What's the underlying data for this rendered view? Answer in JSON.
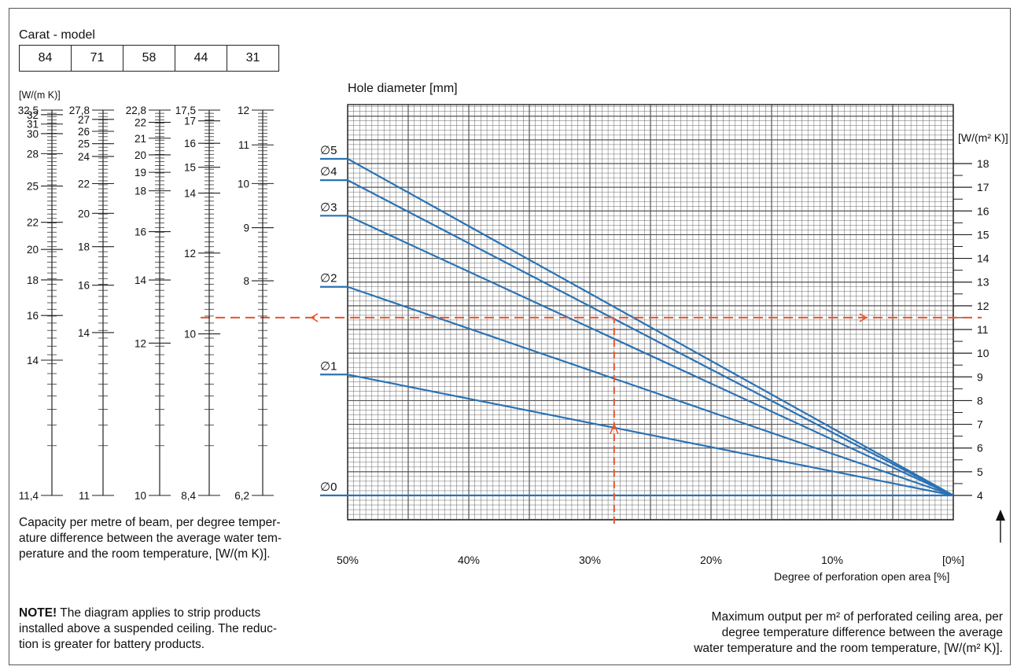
{
  "model_box": {
    "title": "Carat - model",
    "models": [
      "84",
      "71",
      "58",
      "44",
      "31"
    ]
  },
  "left_panel": {
    "unit": "[W/(m K)]",
    "caption": [
      "Capacity per metre of beam, per degree temper-",
      "ature difference between the average water tem-",
      "perature and the room temperature, [W/(m K)]."
    ]
  },
  "note": {
    "label": "NOTE!",
    "lines": [
      " The diagram applies to strip products",
      "installed above a suspended ceiling. The reduc-",
      "tion is greater for battery products."
    ]
  },
  "right_caption": [
    "Maximum output per m² of perforated ceiling area, per",
    "degree temperature difference between the average",
    "water temperature and the room temperature, [W/(m² K)]."
  ],
  "colors": {
    "curve": "#2a72b5",
    "guide": "#e8542a",
    "grid": "#333333"
  },
  "chart_data": [
    {
      "type": "line",
      "title": "Hole diameter [mm]",
      "xlabel": "Degree of perforation open area [%]",
      "ylabel": "[W/(m² K)]",
      "x_ticks": [
        "50%",
        "40%",
        "30%",
        "20%",
        "10%",
        "[0%]"
      ],
      "xlim": [
        50,
        0
      ],
      "y_ticks": [
        4,
        5,
        6,
        7,
        8,
        9,
        10,
        11,
        12,
        13,
        14,
        15,
        16,
        17,
        18
      ],
      "ylim": [
        3,
        19
      ],
      "series": [
        {
          "name": "∅5",
          "points": [
            [
              50,
              18.2
            ],
            [
              0,
              4
            ]
          ]
        },
        {
          "name": "∅4",
          "points": [
            [
              50,
              17.3
            ],
            [
              0,
              4
            ]
          ]
        },
        {
          "name": "∅3",
          "points": [
            [
              50,
              15.8
            ],
            [
              0,
              4
            ]
          ]
        },
        {
          "name": "∅2",
          "points": [
            [
              50,
              12.8
            ],
            [
              0,
              4
            ]
          ]
        },
        {
          "name": "∅1",
          "points": [
            [
              50,
              9.1
            ],
            [
              0,
              4
            ]
          ]
        },
        {
          "name": "∅0",
          "points": [
            [
              50,
              4
            ],
            [
              0,
              4
            ]
          ]
        }
      ],
      "example_reading": {
        "x": 28,
        "y": 11.5
      }
    },
    {
      "type": "scale",
      "scales": [
        {
          "labels": [
            [
              "32,5",
              32.5
            ],
            [
              "32",
              32
            ],
            [
              "31",
              31
            ],
            [
              "30",
              30
            ],
            [
              "28",
              28
            ],
            [
              "25",
              25
            ],
            [
              "22",
              22
            ],
            [
              "20",
              20
            ],
            [
              "18",
              18
            ],
            [
              "16",
              16
            ],
            [
              "14",
              14
            ],
            [
              "11,4",
              11.4
            ]
          ]
        },
        {
          "labels": [
            [
              "27,8",
              27.8
            ],
            [
              "27",
              27
            ],
            [
              "26",
              26
            ],
            [
              "25",
              25
            ],
            [
              "24",
              24
            ],
            [
              "22",
              22
            ],
            [
              "20",
              20
            ],
            [
              "18",
              18
            ],
            [
              "16",
              16
            ],
            [
              "14",
              14
            ],
            [
              "11",
              11
            ]
          ]
        },
        {
          "labels": [
            [
              "22,8",
              22.8
            ],
            [
              "22",
              22
            ],
            [
              "21",
              21
            ],
            [
              "20",
              20
            ],
            [
              "19",
              19
            ],
            [
              "18",
              18
            ],
            [
              "16",
              16
            ],
            [
              "14",
              14
            ],
            [
              "12",
              12
            ],
            [
              "10",
              10
            ]
          ]
        },
        {
          "labels": [
            [
              "17,5",
              17.5
            ],
            [
              "17",
              17
            ],
            [
              "16",
              16
            ],
            [
              "15",
              15
            ],
            [
              "14",
              14
            ],
            [
              "12",
              12
            ],
            [
              "10",
              10
            ],
            [
              "8,4",
              8.4
            ]
          ]
        },
        {
          "labels": [
            [
              "12",
              12
            ],
            [
              "11",
              11
            ],
            [
              "10",
              10
            ],
            [
              "9",
              9
            ],
            [
              "8",
              8
            ],
            [
              "6,2",
              6.2
            ]
          ]
        }
      ]
    }
  ]
}
